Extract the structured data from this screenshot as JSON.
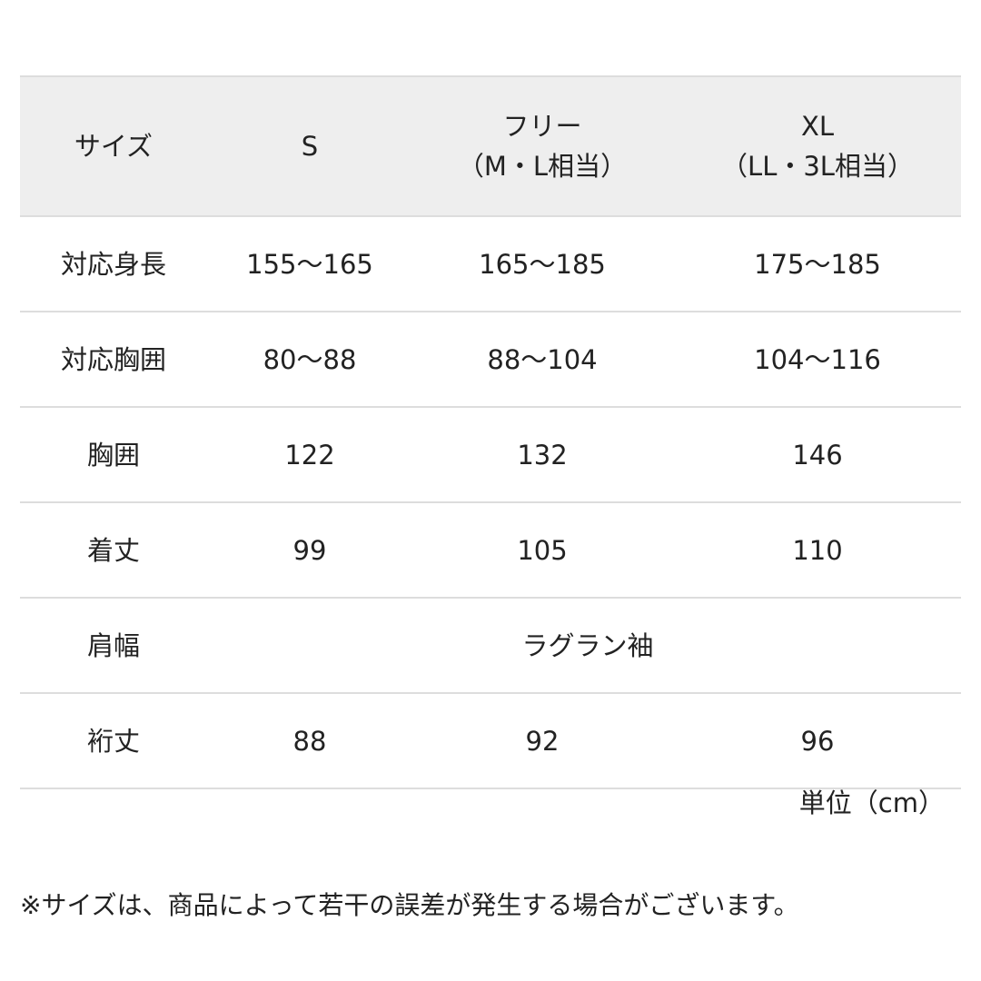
{
  "header": {
    "label": "サイズ",
    "sizes": [
      [
        "S"
      ],
      [
        "フリー",
        "（M・L相当）"
      ],
      [
        "XL",
        "（LL・3L相当）"
      ]
    ]
  },
  "rows": [
    {
      "label": "対応身長",
      "values": [
        "155〜165",
        "165〜185",
        "175〜185"
      ]
    },
    {
      "label": "対応胸囲",
      "values": [
        "80〜88",
        "88〜104",
        "104〜116"
      ]
    },
    {
      "label": "胸囲",
      "values": [
        "122",
        "132",
        "146"
      ]
    },
    {
      "label": "着丈",
      "values": [
        "99",
        "105",
        "110"
      ]
    },
    {
      "label": "肩幅",
      "span": "ラグラン袖"
    },
    {
      "label": "裄丈",
      "values": [
        "88",
        "92",
        "96"
      ]
    }
  ],
  "unit": "単位（cm）",
  "note": "※サイズは、商品によって若干の誤差が発生する場合がございます。"
}
